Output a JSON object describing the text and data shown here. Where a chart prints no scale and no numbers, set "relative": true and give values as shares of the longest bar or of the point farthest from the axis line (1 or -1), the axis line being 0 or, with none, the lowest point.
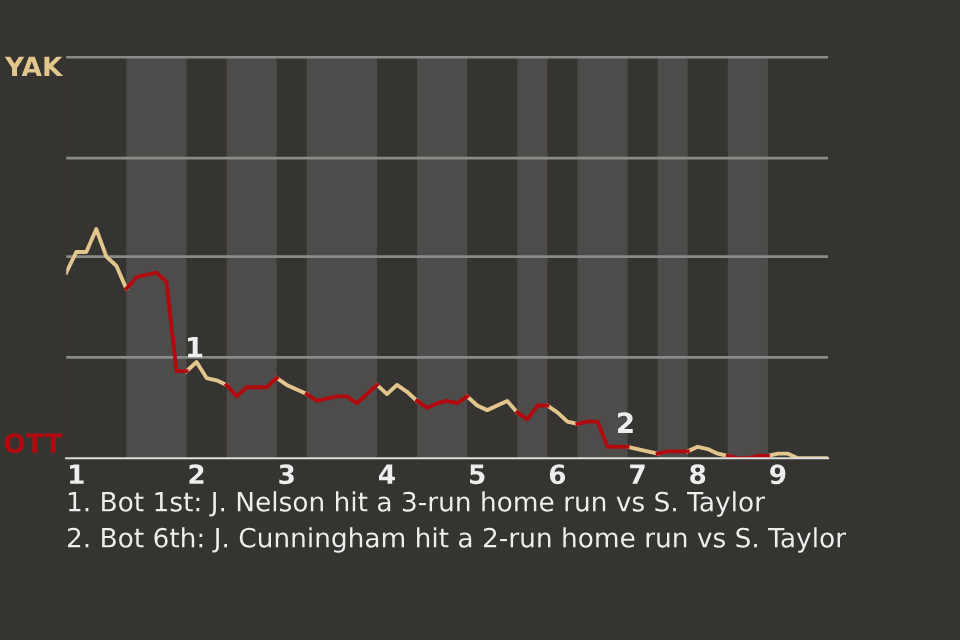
{
  "chart_data": {
    "type": "line",
    "relative": true,
    "categories": [
      null,
      "1",
      null,
      null,
      null,
      null,
      null,
      null,
      null,
      null,
      null,
      null,
      null,
      "2",
      null,
      null,
      null,
      null,
      null,
      null,
      null,
      null,
      "3",
      null,
      null,
      null,
      null,
      null,
      null,
      null,
      null,
      null,
      "4",
      null,
      null,
      null,
      null,
      null,
      null,
      null,
      null,
      "5",
      null,
      null,
      null,
      null,
      null,
      null,
      null,
      "6",
      null,
      null,
      null,
      null,
      null,
      null,
      null,
      "7",
      null,
      null,
      null,
      null,
      null,
      "8",
      null,
      null,
      null,
      null,
      null,
      null,
      null,
      "9",
      null,
      null,
      null,
      null,
      null
    ],
    "series": [
      {
        "color": "#e3c68e",
        "values": [
          0.81,
          0.9,
          0.9,
          1,
          0.88,
          0.84,
          0.74,
          null,
          null,
          null,
          null,
          null,
          0.38,
          0.42,
          0.35,
          0.34,
          0.32,
          null,
          null,
          null,
          null,
          0.35,
          0.32,
          0.3,
          0.28,
          null,
          null,
          null,
          null,
          null,
          null,
          0.32,
          0.28,
          0.32,
          0.29,
          0.25,
          null,
          null,
          null,
          null,
          0.27,
          0.23,
          0.21,
          0.23,
          0.25,
          0.2,
          null,
          null,
          0.23,
          0.2,
          0.16,
          0.15,
          null,
          null,
          null,
          null,
          0.05,
          0.04,
          0.03,
          0.02,
          null,
          null,
          0.03,
          0.05,
          0.04,
          0.02,
          0.01,
          null,
          null,
          null,
          0.01,
          0.02,
          0.02,
          0,
          0,
          0,
          0
        ]
      },
      {
        "color": "#b10a0e",
        "values": [
          null,
          null,
          null,
          null,
          null,
          null,
          0.74,
          0.79,
          0.8,
          0.81,
          0.77,
          0.38,
          0.38,
          null,
          null,
          null,
          0.32,
          0.27,
          0.31,
          0.31,
          0.31,
          0.35,
          null,
          null,
          0.28,
          0.25,
          0.26,
          0.27,
          0.27,
          0.24,
          0.28,
          0.32,
          null,
          null,
          null,
          0.25,
          0.22,
          0.24,
          0.25,
          0.24,
          0.27,
          null,
          null,
          null,
          null,
          0.2,
          0.17,
          0.23,
          0.23,
          null,
          null,
          0.15,
          0.16,
          0.16,
          0.05,
          0.05,
          0.05,
          null,
          null,
          0.02,
          0.03,
          0.03,
          0.03,
          null,
          null,
          null,
          0.01,
          0,
          0,
          0.01,
          0.01,
          null,
          null,
          null,
          null,
          null,
          null
        ]
      }
    ],
    "grid": false,
    "line_style": "solid",
    "marker": "none",
    "ref_lines": [
      {
        "axis": "y",
        "value": 0.44,
        "color": "#8a8a88"
      },
      {
        "axis": "y",
        "value": 0.88,
        "color": "#8a8a88"
      },
      {
        "axis": "y",
        "value": 1.31,
        "color": "#8a8a88"
      },
      {
        "axis": "y",
        "value": 1.75,
        "color": "#8a8a88"
      }
    ],
    "annotations": [
      "YAK",
      "OTT",
      {
        "text": "1",
        "y": 0.38
      },
      {
        "text": "2",
        "y": 0.05
      },
      "1. Bot 1st: J. Nelson hit a 3-run home run vs S. Taylor",
      "2. Bot 6th: J. Cunningham hit a 2-run home run vs S. Taylor"
    ]
  }
}
